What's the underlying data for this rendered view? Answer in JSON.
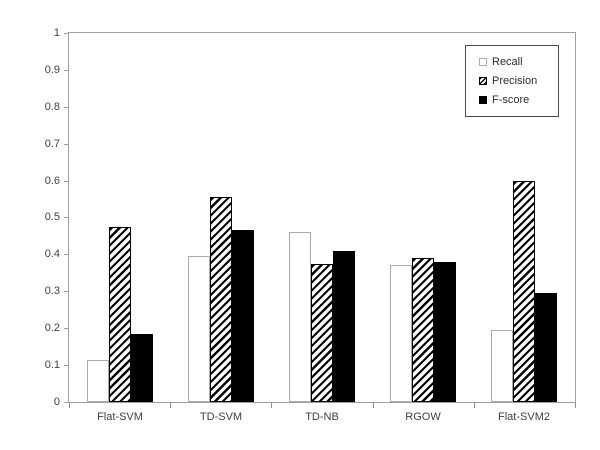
{
  "chart_data": {
    "type": "bar",
    "title": "",
    "xlabel": "",
    "ylabel": "",
    "categories": [
      "Flat-SVM",
      "TD-SVM",
      "TD-NB",
      "RGOW",
      "Flat-SVM2"
    ],
    "series": [
      {
        "name": "Recall",
        "style": "white-outline",
        "values": [
          0.115,
          0.395,
          0.46,
          0.37,
          0.195
        ]
      },
      {
        "name": "Precision",
        "style": "diagonal-hatch",
        "values": [
          0.475,
          0.555,
          0.375,
          0.39,
          0.6
        ]
      },
      {
        "name": "F-score",
        "style": "solid-black",
        "values": [
          0.185,
          0.465,
          0.41,
          0.38,
          0.295
        ]
      }
    ],
    "ylim": [
      0,
      1
    ],
    "ytick_labels": [
      "0",
      "0.1",
      "0.2",
      "0.3",
      "0.4",
      "0.5",
      "0.6",
      "0.7",
      "0.8",
      "0.9",
      "1"
    ],
    "grid": false,
    "legend_position": "top-right"
  },
  "colors": {
    "background": "#ffffff",
    "axis": "#9e9e9e",
    "text": "#404040",
    "bar_black": "#000000",
    "recall_border": "#ababab",
    "legend_border": "#4a4a4a"
  }
}
